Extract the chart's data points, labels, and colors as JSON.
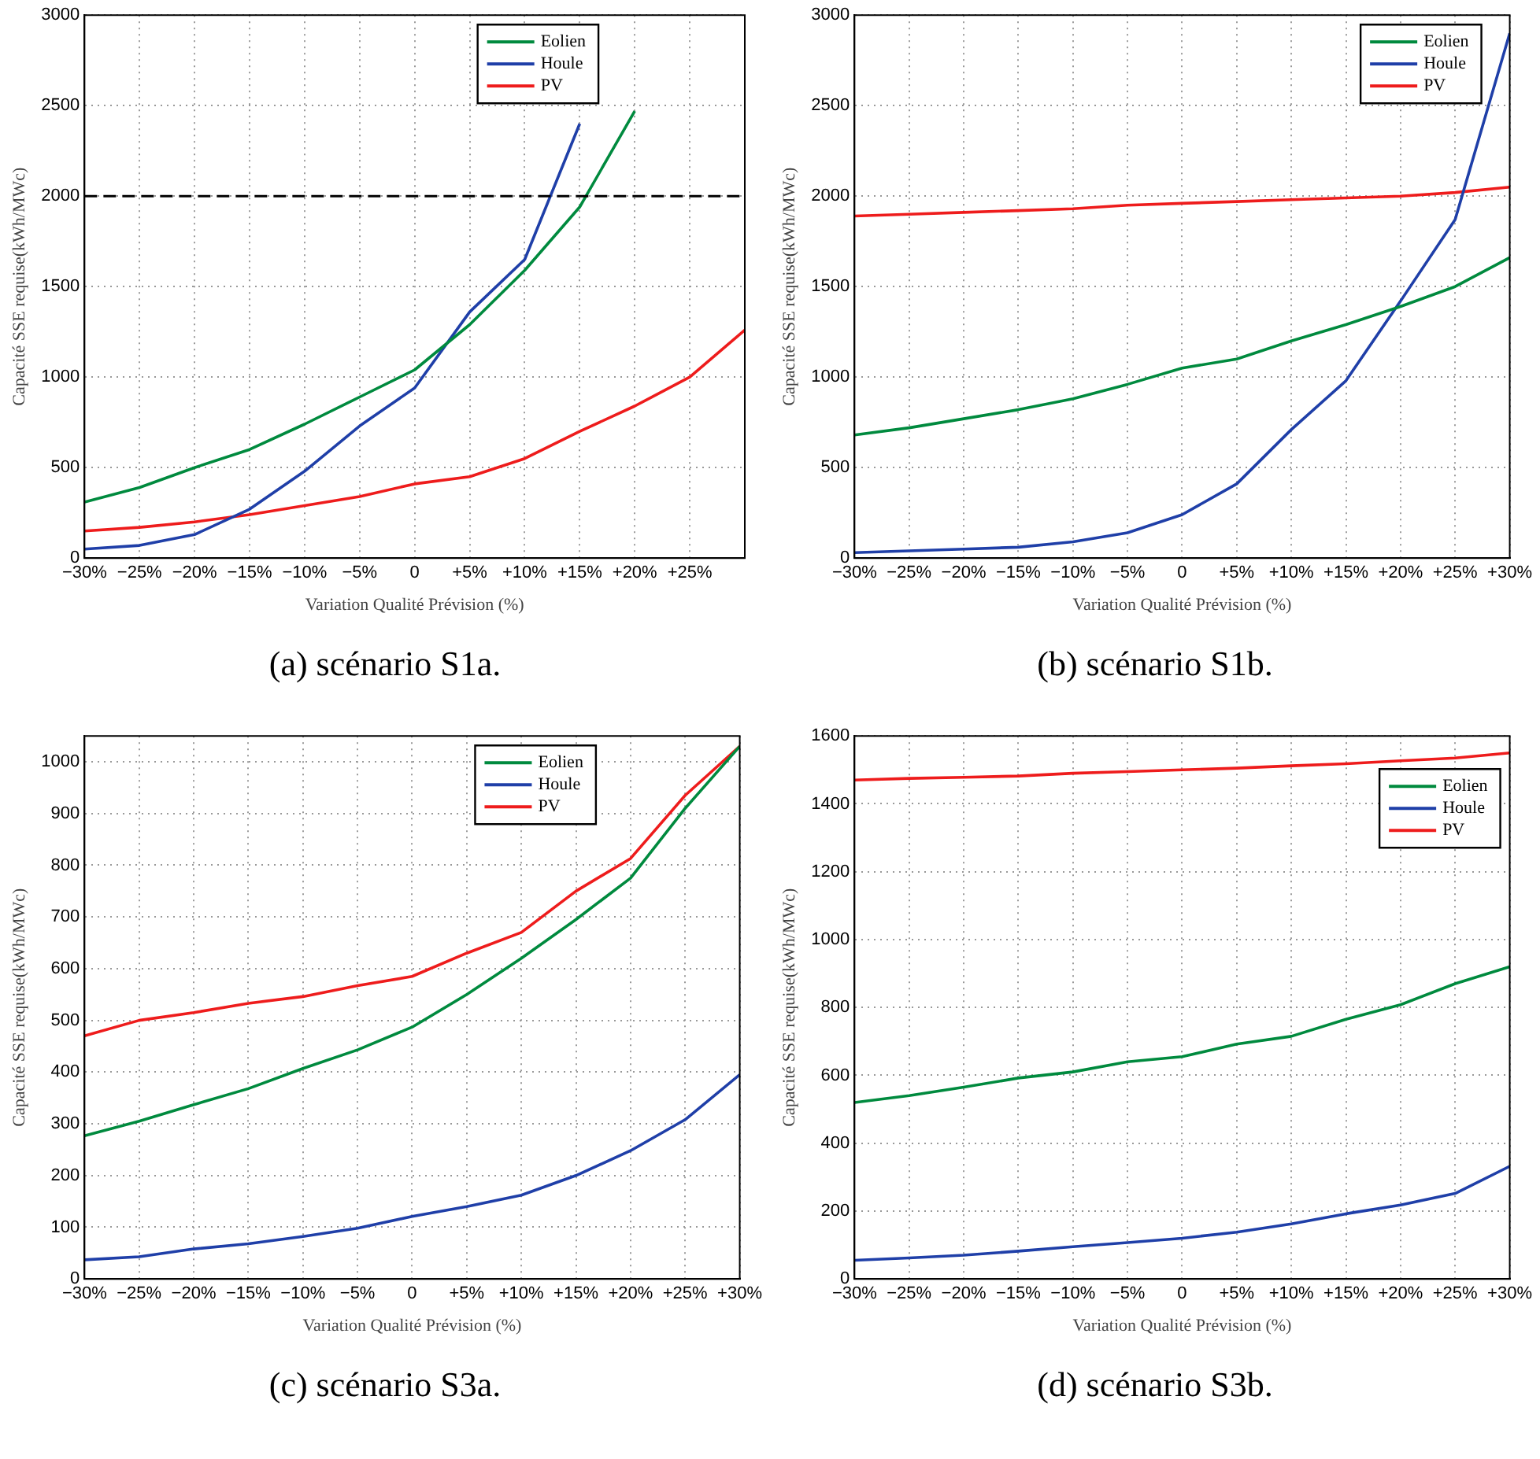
{
  "chart_data": [
    {
      "type": "line",
      "title": "(a) scénario S1a.",
      "xlabel": "Variation Qualité Prévision (%)",
      "ylabel": "Capacité SSE requise(kWh/MWc)",
      "x": [
        -30,
        -25,
        -20,
        -15,
        -10,
        -5,
        0,
        5,
        10,
        15,
        20,
        25,
        30
      ],
      "xlim": [
        -30,
        30
      ],
      "xticks": [
        {
          "value": -30,
          "label": "−30%"
        },
        {
          "value": -25,
          "label": "−25%"
        },
        {
          "value": -20,
          "label": "−20%"
        },
        {
          "value": -15,
          "label": "−15%"
        },
        {
          "value": -10,
          "label": "−10%"
        },
        {
          "value": -5,
          "label": "−5%"
        },
        {
          "value": 0,
          "label": "0"
        },
        {
          "value": 5,
          "label": "+5%"
        },
        {
          "value": 10,
          "label": "+10%"
        },
        {
          "value": 15,
          "label": "+15%"
        },
        {
          "value": 20,
          "label": "+20%"
        },
        {
          "value": 25,
          "label": "+25%"
        }
      ],
      "ylim": [
        0,
        3000
      ],
      "yticks": [
        0,
        500,
        1000,
        1500,
        2000,
        2500,
        3000
      ],
      "grid": true,
      "legend": "top",
      "line_style": "solid",
      "ref_lines": [
        {
          "axis": "y",
          "value": 2000,
          "color": "#000000",
          "line_style": "dashed"
        }
      ],
      "series": [
        {
          "name": "Eolien",
          "color": "#008a3e",
          "values": [
            310,
            390,
            500,
            600,
            740,
            890,
            1040,
            1290,
            1590,
            1940,
            2470,
            null,
            null
          ]
        },
        {
          "name": "Houle",
          "color": "#1f3fa8",
          "values": [
            50,
            70,
            130,
            270,
            480,
            730,
            940,
            1360,
            1650,
            2400,
            null,
            null,
            null
          ]
        },
        {
          "name": "PV",
          "color": "#ee1c1c",
          "values": [
            150,
            170,
            200,
            240,
            290,
            340,
            410,
            450,
            550,
            700,
            840,
            1000,
            1260
          ]
        }
      ]
    },
    {
      "type": "line",
      "title": "(b) scénario S1b.",
      "xlabel": "Variation Qualité Prévision (%)",
      "ylabel": "Capacité SSE requise(kWh/MWc)",
      "x": [
        -30,
        -25,
        -20,
        -15,
        -10,
        -5,
        0,
        5,
        10,
        15,
        20,
        25,
        30
      ],
      "xlim": [
        -30,
        30
      ],
      "xticks": [
        {
          "value": -30,
          "label": "−30%"
        },
        {
          "value": -25,
          "label": "−25%"
        },
        {
          "value": -20,
          "label": "−20%"
        },
        {
          "value": -15,
          "label": "−15%"
        },
        {
          "value": -10,
          "label": "−10%"
        },
        {
          "value": -5,
          "label": "−5%"
        },
        {
          "value": 0,
          "label": "0"
        },
        {
          "value": 5,
          "label": "+5%"
        },
        {
          "value": 10,
          "label": "+10%"
        },
        {
          "value": 15,
          "label": "+15%"
        },
        {
          "value": 20,
          "label": "+20%"
        },
        {
          "value": 25,
          "label": "+25%"
        },
        {
          "value": 30,
          "label": "+30%"
        }
      ],
      "ylim": [
        0,
        3000
      ],
      "yticks": [
        0,
        500,
        1000,
        1500,
        2000,
        2500,
        3000
      ],
      "grid": true,
      "legend": "top right",
      "line_style": "solid",
      "series": [
        {
          "name": "Eolien",
          "color": "#008a3e",
          "values": [
            680,
            720,
            770,
            820,
            880,
            960,
            1050,
            1100,
            1200,
            1290,
            1390,
            1500,
            1660
          ]
        },
        {
          "name": "Houle",
          "color": "#1f3fa8",
          "values": [
            30,
            40,
            50,
            60,
            90,
            140,
            240,
            410,
            710,
            980,
            1420,
            1870,
            2900
          ]
        },
        {
          "name": "PV",
          "color": "#ee1c1c",
          "values": [
            1890,
            1900,
            1910,
            1920,
            1930,
            1950,
            1960,
            1970,
            1980,
            1990,
            2000,
            2020,
            2050
          ]
        }
      ]
    },
    {
      "type": "line",
      "title": "(c) scénario S3a.",
      "xlabel": "Variation Qualité Prévision (%)",
      "ylabel": "Capacité SSE requise(kWh/MWc)",
      "x": [
        -30,
        -25,
        -20,
        -15,
        -10,
        -5,
        0,
        5,
        10,
        15,
        20,
        25,
        30
      ],
      "xlim": [
        -30,
        30
      ],
      "xticks": [
        {
          "value": -30,
          "label": "−30%"
        },
        {
          "value": -25,
          "label": "−25%"
        },
        {
          "value": -20,
          "label": "−20%"
        },
        {
          "value": -15,
          "label": "−15%"
        },
        {
          "value": -10,
          "label": "−10%"
        },
        {
          "value": -5,
          "label": "−5%"
        },
        {
          "value": 0,
          "label": "0"
        },
        {
          "value": 5,
          "label": "+5%"
        },
        {
          "value": 10,
          "label": "+10%"
        },
        {
          "value": 15,
          "label": "+15%"
        },
        {
          "value": 20,
          "label": "+20%"
        },
        {
          "value": 25,
          "label": "+25%"
        },
        {
          "value": 30,
          "label": "+30%"
        }
      ],
      "ylim": [
        0,
        1050
      ],
      "yticks": [
        0,
        100,
        200,
        300,
        400,
        500,
        600,
        700,
        800,
        900,
        1000
      ],
      "grid": true,
      "legend": "top",
      "line_style": "solid",
      "series": [
        {
          "name": "Eolien",
          "color": "#008a3e",
          "values": [
            277,
            305,
            337,
            368,
            407,
            443,
            487,
            550,
            620,
            695,
            775,
            910,
            1030
          ]
        },
        {
          "name": "Houle",
          "color": "#1f3fa8",
          "values": [
            37,
            43,
            58,
            68,
            82,
            98,
            121,
            140,
            162,
            200,
            248,
            308,
            395
          ]
        },
        {
          "name": "PV",
          "color": "#ee1c1c",
          "values": [
            470,
            500,
            515,
            533,
            546,
            567,
            585,
            630,
            670,
            750,
            813,
            935,
            1030
          ]
        }
      ]
    },
    {
      "type": "line",
      "title": "(d) scénario S3b.",
      "xlabel": "Variation Qualité Prévision (%)",
      "ylabel": "Capacité SSE requise(kWh/MWc)",
      "x": [
        -30,
        -25,
        -20,
        -15,
        -10,
        -5,
        0,
        5,
        10,
        15,
        20,
        25,
        30
      ],
      "xlim": [
        -30,
        30
      ],
      "xticks": [
        {
          "value": -30,
          "label": "−30%"
        },
        {
          "value": -25,
          "label": "−25%"
        },
        {
          "value": -20,
          "label": "−20%"
        },
        {
          "value": -15,
          "label": "−15%"
        },
        {
          "value": -10,
          "label": "−10%"
        },
        {
          "value": -5,
          "label": "−5%"
        },
        {
          "value": 0,
          "label": "0"
        },
        {
          "value": 5,
          "label": "+5%"
        },
        {
          "value": 10,
          "label": "+10%"
        },
        {
          "value": 15,
          "label": "+15%"
        },
        {
          "value": 20,
          "label": "+20%"
        },
        {
          "value": 25,
          "label": "+25%"
        },
        {
          "value": 30,
          "label": "+30%"
        }
      ],
      "ylim": [
        0,
        1600
      ],
      "yticks": [
        0,
        200,
        400,
        600,
        800,
        1000,
        1200,
        1400,
        1600
      ],
      "grid": true,
      "legend": "top right",
      "line_style": "solid",
      "series": [
        {
          "name": "Eolien",
          "color": "#008a3e",
          "values": [
            520,
            540,
            565,
            592,
            610,
            640,
            655,
            692,
            715,
            765,
            808,
            870,
            920
          ]
        },
        {
          "name": "Houle",
          "color": "#1f3fa8",
          "values": [
            55,
            62,
            70,
            82,
            95,
            107,
            120,
            138,
            162,
            192,
            218,
            252,
            332
          ]
        },
        {
          "name": "PV",
          "color": "#ee1c1c",
          "values": [
            1470,
            1475,
            1478,
            1482,
            1490,
            1495,
            1500,
            1505,
            1512,
            1518,
            1527,
            1535,
            1550
          ]
        }
      ]
    }
  ]
}
